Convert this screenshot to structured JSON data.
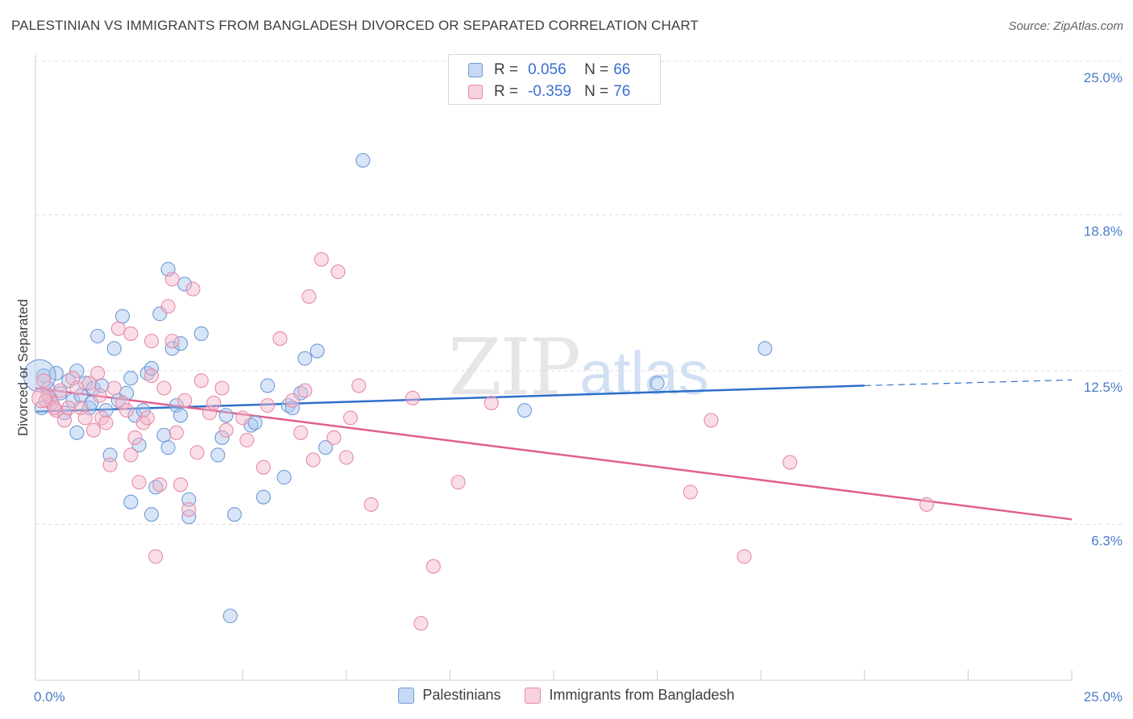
{
  "title": "PALESTINIAN VS IMMIGRANTS FROM BANGLADESH DIVORCED OR SEPARATED CORRELATION CHART",
  "source": "Source: ZipAtlas.com",
  "watermark": {
    "zip": "ZIP",
    "atlas": "atlas"
  },
  "legend_top": {
    "rows": [
      {
        "r_label": "R =",
        "r_value": "0.056",
        "n_label": "N =",
        "n_value": "66"
      },
      {
        "r_label": "R =",
        "r_value": "-0.359",
        "n_label": "N =",
        "n_value": "76"
      }
    ]
  },
  "legend_bottom": [
    {
      "label": "Palestinians"
    },
    {
      "label": "Immigrants from Bangladesh"
    }
  ],
  "colors": {
    "blue_fill": "#a9c6ee",
    "blue_stroke": "#6f9ad8",
    "blue_line": "#2d6fcb",
    "pink_fill": "#f5b5c9",
    "pink_stroke": "#e68aa8",
    "pink_line": "#e0608e",
    "grid": "#dddddd",
    "tick_text": "#4a7cc9"
  },
  "chart_data": {
    "type": "scatter",
    "title": "PALESTINIAN VS IMMIGRANTS FROM BANGLADESH DIVORCED OR SEPARATED CORRELATION CHART",
    "xlabel": "",
    "ylabel": "Divorced or Separated",
    "xlim": [
      0,
      25
    ],
    "ylim": [
      0,
      25
    ],
    "x_ticks": [
      "0.0%",
      "25.0%"
    ],
    "y_ticks": [
      {
        "value": 25.0,
        "label": "25.0%"
      },
      {
        "value": 18.8,
        "label": "18.8%"
      },
      {
        "value": 12.5,
        "label": "12.5%"
      },
      {
        "value": 6.3,
        "label": "6.3%"
      }
    ],
    "grid": true,
    "legend_position": "top-center",
    "series": [
      {
        "name": "Palestinians",
        "color": "#a9c6ee",
        "trend": {
          "x": [
            0,
            20
          ],
          "y": [
            10.85,
            11.9
          ],
          "extend_to": 25,
          "extend_y": 12.13
        },
        "points": [
          [
            0.2,
            12.3
          ],
          [
            0.3,
            11.8
          ],
          [
            0.4,
            11.2
          ],
          [
            0.5,
            12.4
          ],
          [
            0.6,
            11.6
          ],
          [
            0.7,
            10.8
          ],
          [
            0.8,
            12.1
          ],
          [
            0.9,
            11.3
          ],
          [
            1.0,
            12.5
          ],
          [
            1.0,
            10.0
          ],
          [
            1.1,
            11.5
          ],
          [
            1.2,
            12.0
          ],
          [
            1.3,
            11.0
          ],
          [
            1.4,
            11.8
          ],
          [
            1.5,
            13.9
          ],
          [
            1.6,
            11.9
          ],
          [
            1.7,
            10.9
          ],
          [
            1.8,
            9.1
          ],
          [
            1.9,
            13.4
          ],
          [
            2.0,
            11.3
          ],
          [
            2.1,
            14.7
          ],
          [
            2.2,
            11.6
          ],
          [
            2.3,
            12.2
          ],
          [
            2.3,
            7.2
          ],
          [
            2.4,
            10.7
          ],
          [
            2.5,
            9.5
          ],
          [
            2.6,
            10.9
          ],
          [
            2.7,
            12.4
          ],
          [
            2.8,
            12.6
          ],
          [
            2.8,
            6.7
          ],
          [
            2.9,
            7.8
          ],
          [
            3.0,
            14.8
          ],
          [
            3.1,
            9.9
          ],
          [
            3.2,
            9.4
          ],
          [
            3.2,
            16.6
          ],
          [
            3.3,
            13.4
          ],
          [
            3.4,
            11.1
          ],
          [
            3.5,
            13.6
          ],
          [
            3.5,
            10.7
          ],
          [
            3.6,
            16.0
          ],
          [
            3.7,
            6.6
          ],
          [
            3.7,
            7.3
          ],
          [
            4.0,
            14.0
          ],
          [
            4.4,
            9.1
          ],
          [
            4.5,
            9.8
          ],
          [
            4.6,
            10.7
          ],
          [
            4.7,
            2.6
          ],
          [
            4.8,
            6.7
          ],
          [
            5.2,
            10.3
          ],
          [
            5.3,
            10.4
          ],
          [
            5.5,
            7.4
          ],
          [
            5.6,
            11.9
          ],
          [
            6.0,
            8.2
          ],
          [
            6.1,
            11.1
          ],
          [
            6.2,
            11.0
          ],
          [
            6.4,
            11.6
          ],
          [
            6.5,
            13.0
          ],
          [
            6.8,
            13.3
          ],
          [
            7.0,
            9.4
          ],
          [
            7.9,
            21.0
          ],
          [
            11.8,
            10.9
          ],
          [
            15.0,
            12.0
          ],
          [
            17.6,
            13.4
          ],
          [
            0.35,
            11.4
          ],
          [
            1.35,
            11.2
          ],
          [
            0.15,
            11.0
          ]
        ]
      },
      {
        "name": "Immigrants from Bangladesh",
        "color": "#f5b5c9",
        "trend": {
          "x": [
            0,
            25
          ],
          "y": [
            11.8,
            6.5
          ]
        },
        "points": [
          [
            0.2,
            12.1
          ],
          [
            0.3,
            11.5
          ],
          [
            0.4,
            11.2
          ],
          [
            0.5,
            10.9
          ],
          [
            0.6,
            11.7
          ],
          [
            0.7,
            10.5
          ],
          [
            0.8,
            11.0
          ],
          [
            0.9,
            12.2
          ],
          [
            1.0,
            11.8
          ],
          [
            1.1,
            11.0
          ],
          [
            1.2,
            10.6
          ],
          [
            1.3,
            12.0
          ],
          [
            1.4,
            10.1
          ],
          [
            1.5,
            12.4
          ],
          [
            1.6,
            10.6
          ],
          [
            1.7,
            10.4
          ],
          [
            1.8,
            8.7
          ],
          [
            1.9,
            11.8
          ],
          [
            2.0,
            14.2
          ],
          [
            2.1,
            11.2
          ],
          [
            2.2,
            10.9
          ],
          [
            2.3,
            14.0
          ],
          [
            2.3,
            9.1
          ],
          [
            2.4,
            9.8
          ],
          [
            2.5,
            8.0
          ],
          [
            2.6,
            10.4
          ],
          [
            2.7,
            10.6
          ],
          [
            2.8,
            12.3
          ],
          [
            2.8,
            13.7
          ],
          [
            2.9,
            5.0
          ],
          [
            3.0,
            7.9
          ],
          [
            3.1,
            11.8
          ],
          [
            3.2,
            15.1
          ],
          [
            3.3,
            13.7
          ],
          [
            3.3,
            16.2
          ],
          [
            3.4,
            10.0
          ],
          [
            3.5,
            7.9
          ],
          [
            3.6,
            11.3
          ],
          [
            3.7,
            6.9
          ],
          [
            3.8,
            15.8
          ],
          [
            3.9,
            9.2
          ],
          [
            4.0,
            12.1
          ],
          [
            4.2,
            10.8
          ],
          [
            4.3,
            11.2
          ],
          [
            4.5,
            11.8
          ],
          [
            4.6,
            10.1
          ],
          [
            5.0,
            10.6
          ],
          [
            5.1,
            9.7
          ],
          [
            5.5,
            8.6
          ],
          [
            5.6,
            11.1
          ],
          [
            5.9,
            13.8
          ],
          [
            6.2,
            11.3
          ],
          [
            6.4,
            10.0
          ],
          [
            6.5,
            11.7
          ],
          [
            6.6,
            15.5
          ],
          [
            6.7,
            8.9
          ],
          [
            6.9,
            17.0
          ],
          [
            7.2,
            9.8
          ],
          [
            7.3,
            16.5
          ],
          [
            7.5,
            9.0
          ],
          [
            7.6,
            10.6
          ],
          [
            7.8,
            11.9
          ],
          [
            8.1,
            7.1
          ],
          [
            9.1,
            11.4
          ],
          [
            9.3,
            2.3
          ],
          [
            9.6,
            4.6
          ],
          [
            10.2,
            8.0
          ],
          [
            11.0,
            11.2
          ],
          [
            15.8,
            7.6
          ],
          [
            16.3,
            10.5
          ],
          [
            17.1,
            5.0
          ],
          [
            18.2,
            8.8
          ],
          [
            21.5,
            7.1
          ],
          [
            0.25,
            11.3
          ],
          [
            1.55,
            11.5
          ],
          [
            0.45,
            11.0
          ]
        ]
      }
    ]
  }
}
